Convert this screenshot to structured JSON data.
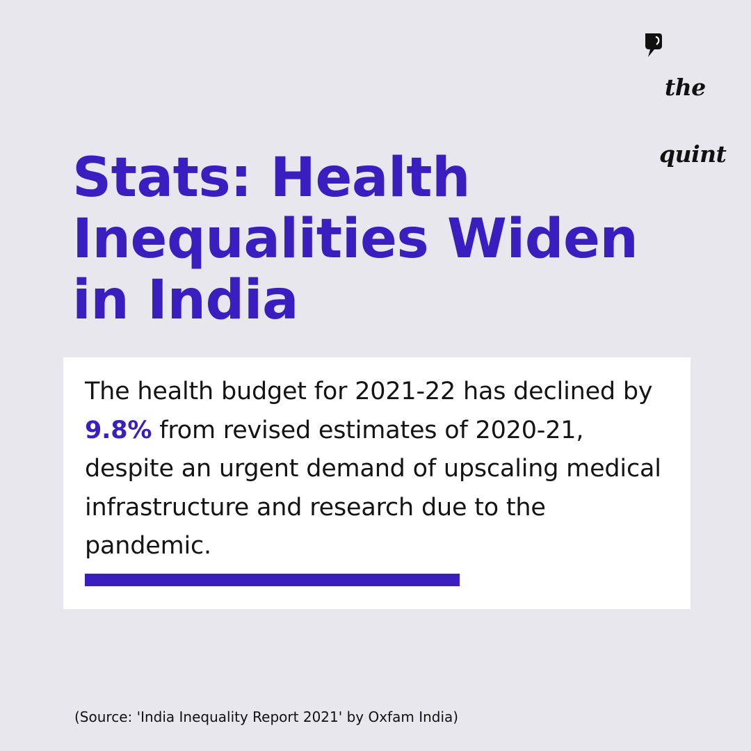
{
  "brand": {
    "logo_line1": "the",
    "logo_line2": "quint",
    "icon": "speech-bubble-icon"
  },
  "title": "Stats: Health Inequalities Widen in India",
  "card": {
    "text_before": "The health budget for 2021-22 has declined by ",
    "highlight": "9.8%",
    "text_after": " from revised estimates of 2020-21, despite an urgent demand of upscaling medical infrastructure and research due to the pandemic."
  },
  "source": "(Source: 'India Inequality Report 2021' by Oxfam India)",
  "colors": {
    "background": "#e9e7ee",
    "accent": "#3a1ec0",
    "card": "#ffffff",
    "text": "#141414"
  }
}
